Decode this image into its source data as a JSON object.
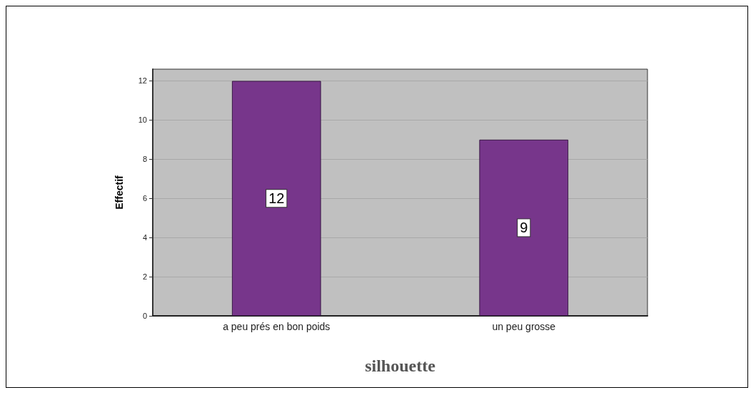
{
  "chart_data": {
    "type": "bar",
    "xlabel": "silhouette",
    "ylabel": "Effectif",
    "categories": [
      "a peu prés en bon poids",
      "un peu grosse"
    ],
    "values": [
      12,
      9
    ],
    "color": "#77368b",
    "ylim": [
      0,
      12.6
    ],
    "yticks": [
      0,
      2,
      4,
      6,
      8,
      10,
      12
    ],
    "grid": "y",
    "data_labels": true
  }
}
